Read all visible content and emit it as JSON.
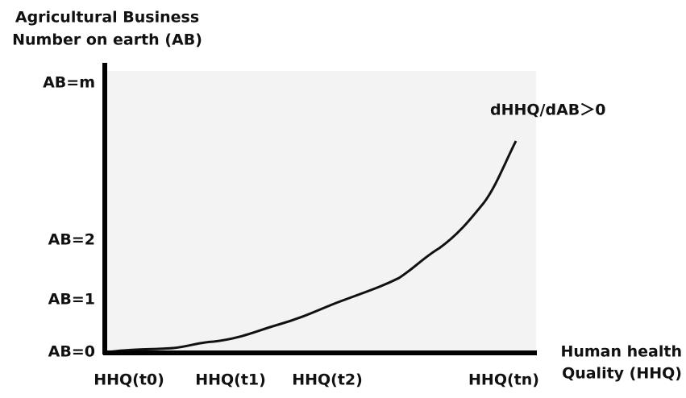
{
  "y_axis": {
    "title": [
      "Agricultural Business",
      "Number on earth (AB)"
    ],
    "labels": [
      "AB=m",
      "AB=2",
      "AB=1",
      "AB=0"
    ]
  },
  "x_axis": {
    "title": [
      "Human health",
      "Quality (HHQ)"
    ],
    "labels": [
      "HHQ(t0)",
      "HHQ(t1)",
      "HHQ(t2)",
      "HHQ(tn)"
    ]
  },
  "annotation": "dHHQ/dAB＞0"
}
